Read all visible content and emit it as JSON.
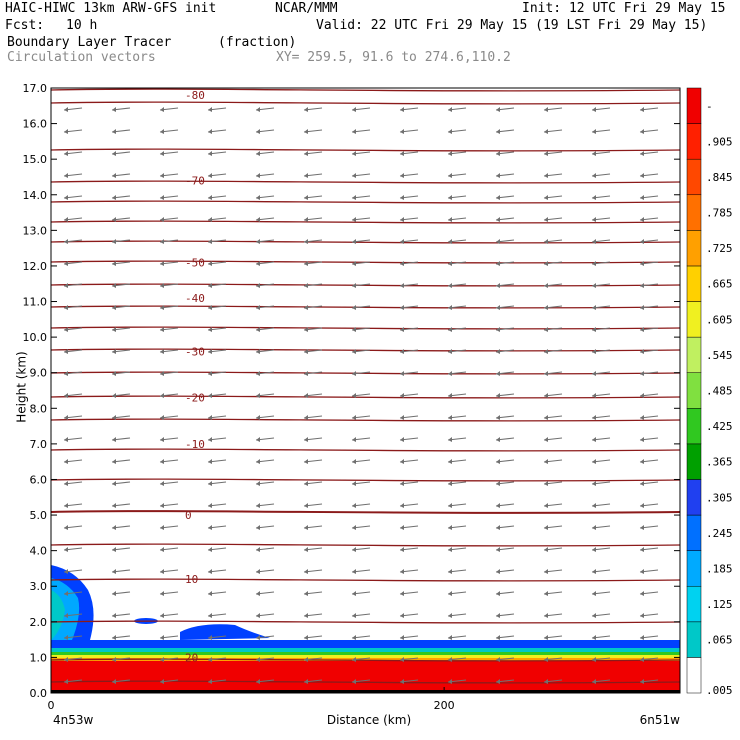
{
  "header": {
    "model": "HAIC-HIWC 13km ARW-GFS init",
    "org": "NCAR/MMM",
    "init": "Init: 12 UTC Fri 29 May 15",
    "fcst_label": "Fcst:",
    "fcst_value": "10 h",
    "valid": "Valid: 22 UTC Fri 29 May 15 (19 LST Fri 29 May 15)",
    "field": "Boundary Layer Tracer",
    "field_units": "(fraction)",
    "overlay": "Circulation vectors",
    "xy": "XY= 259.5, 91.6 to 274.6,110.2"
  },
  "chart_data": {
    "type": "heatmap",
    "title": "Boundary Layer Tracer",
    "xlabel": "Distance (km)",
    "ylabel": "Height (km)",
    "xlim": [
      0,
      320
    ],
    "ylim": [
      0,
      17
    ],
    "x_ticks": [
      "0",
      "200"
    ],
    "x_tick_values": [
      0,
      200
    ],
    "x_end_labels": [
      "4n53w",
      "6n51w"
    ],
    "y_ticks": [
      "0.0",
      "1.0",
      "2.0",
      "3.0",
      "4.0",
      "5.0",
      "6.0",
      "7.0",
      "8.0",
      "9.0",
      "10.0",
      "11.0",
      "12.0",
      "13.0",
      "14.0",
      "15.0",
      "16.0",
      "17.0"
    ],
    "colorbar": {
      "labels": [
        ".005",
        ".065",
        ".125",
        ".185",
        ".245",
        ".305",
        ".365",
        ".425",
        ".485",
        ".545",
        ".605",
        ".665",
        ".725",
        ".785",
        ".845",
        ".905",
        "-"
      ],
      "colors": [
        "#ffffff",
        "#00c8c8",
        "#00d2f0",
        "#00aaff",
        "#0070ff",
        "#2040f0",
        "#00a000",
        "#30c820",
        "#80e040",
        "#c0f060",
        "#f0f020",
        "#ffd000",
        "#ffa000",
        "#ff7000",
        "#ff4800",
        "#ff2000",
        "#f00000"
      ]
    },
    "temperature_contours": [
      {
        "label": "-80",
        "height_km": 16.8
      },
      {
        "label": "-70",
        "height_km": 14.4
      },
      {
        "label": "-50",
        "height_km": 12.1
      },
      {
        "label": "-40",
        "height_km": 11.1
      },
      {
        "label": "-30",
        "height_km": 9.6
      },
      {
        "label": "-20",
        "height_km": 8.3
      },
      {
        "label": "-10",
        "height_km": 7.0
      },
      {
        "label": "0",
        "height_km": 5.0
      },
      {
        "label": "10",
        "height_km": 3.2
      },
      {
        "label": "20",
        "height_km": 1.0
      }
    ],
    "tracer_regions": [
      {
        "description": "boundary layer, tracer ~1.0",
        "top_km": 1.3
      },
      {
        "description": "left plume",
        "top_km": 3.6,
        "x_km_range": [
          0,
          25
        ]
      },
      {
        "description": "elevated layer",
        "top_km": 2.0,
        "x_km_range": [
          40,
          120
        ]
      }
    ]
  }
}
